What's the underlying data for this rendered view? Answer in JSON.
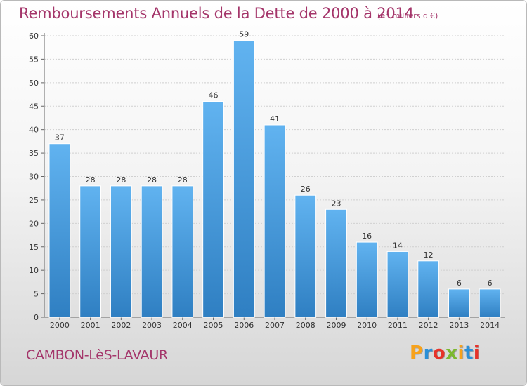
{
  "header": {
    "title": "Remboursements Annuels de la Dette de 2000 à 2014",
    "subtitle": "(en milliers d'€)"
  },
  "footer": {
    "place": "CAMBON-LèS-LAVAUR",
    "logo_letters": [
      "P",
      "r",
      "o",
      "x",
      "i",
      "t",
      "i"
    ],
    "logo_colors": [
      "#f7a21b",
      "#2b8fd6",
      "#e6332a",
      "#7cb82f",
      "#f7a21b",
      "#2b8fd6",
      "#e6332a"
    ]
  },
  "colors": {
    "bar_light": "#61b3f0",
    "bar_dark": "#2f7fc2",
    "title": "#a4356a",
    "grid": "#d0d0d0"
  },
  "chart_data": {
    "type": "bar",
    "title": "Remboursements Annuels de la Dette de 2000 à 2014",
    "subtitle": "(en milliers d'€)",
    "categories": [
      "2000",
      "2001",
      "2002",
      "2003",
      "2004",
      "2005",
      "2006",
      "2007",
      "2008",
      "2009",
      "2010",
      "2011",
      "2012",
      "2013",
      "2014"
    ],
    "values": [
      37,
      28,
      28,
      28,
      28,
      46,
      59,
      41,
      26,
      23,
      16,
      14,
      12,
      6,
      6
    ],
    "ylim": [
      0,
      60
    ],
    "yticks": [
      0,
      5,
      10,
      15,
      20,
      25,
      30,
      35,
      40,
      45,
      50,
      55,
      60
    ],
    "grid": true,
    "xlabel": "",
    "ylabel": ""
  }
}
